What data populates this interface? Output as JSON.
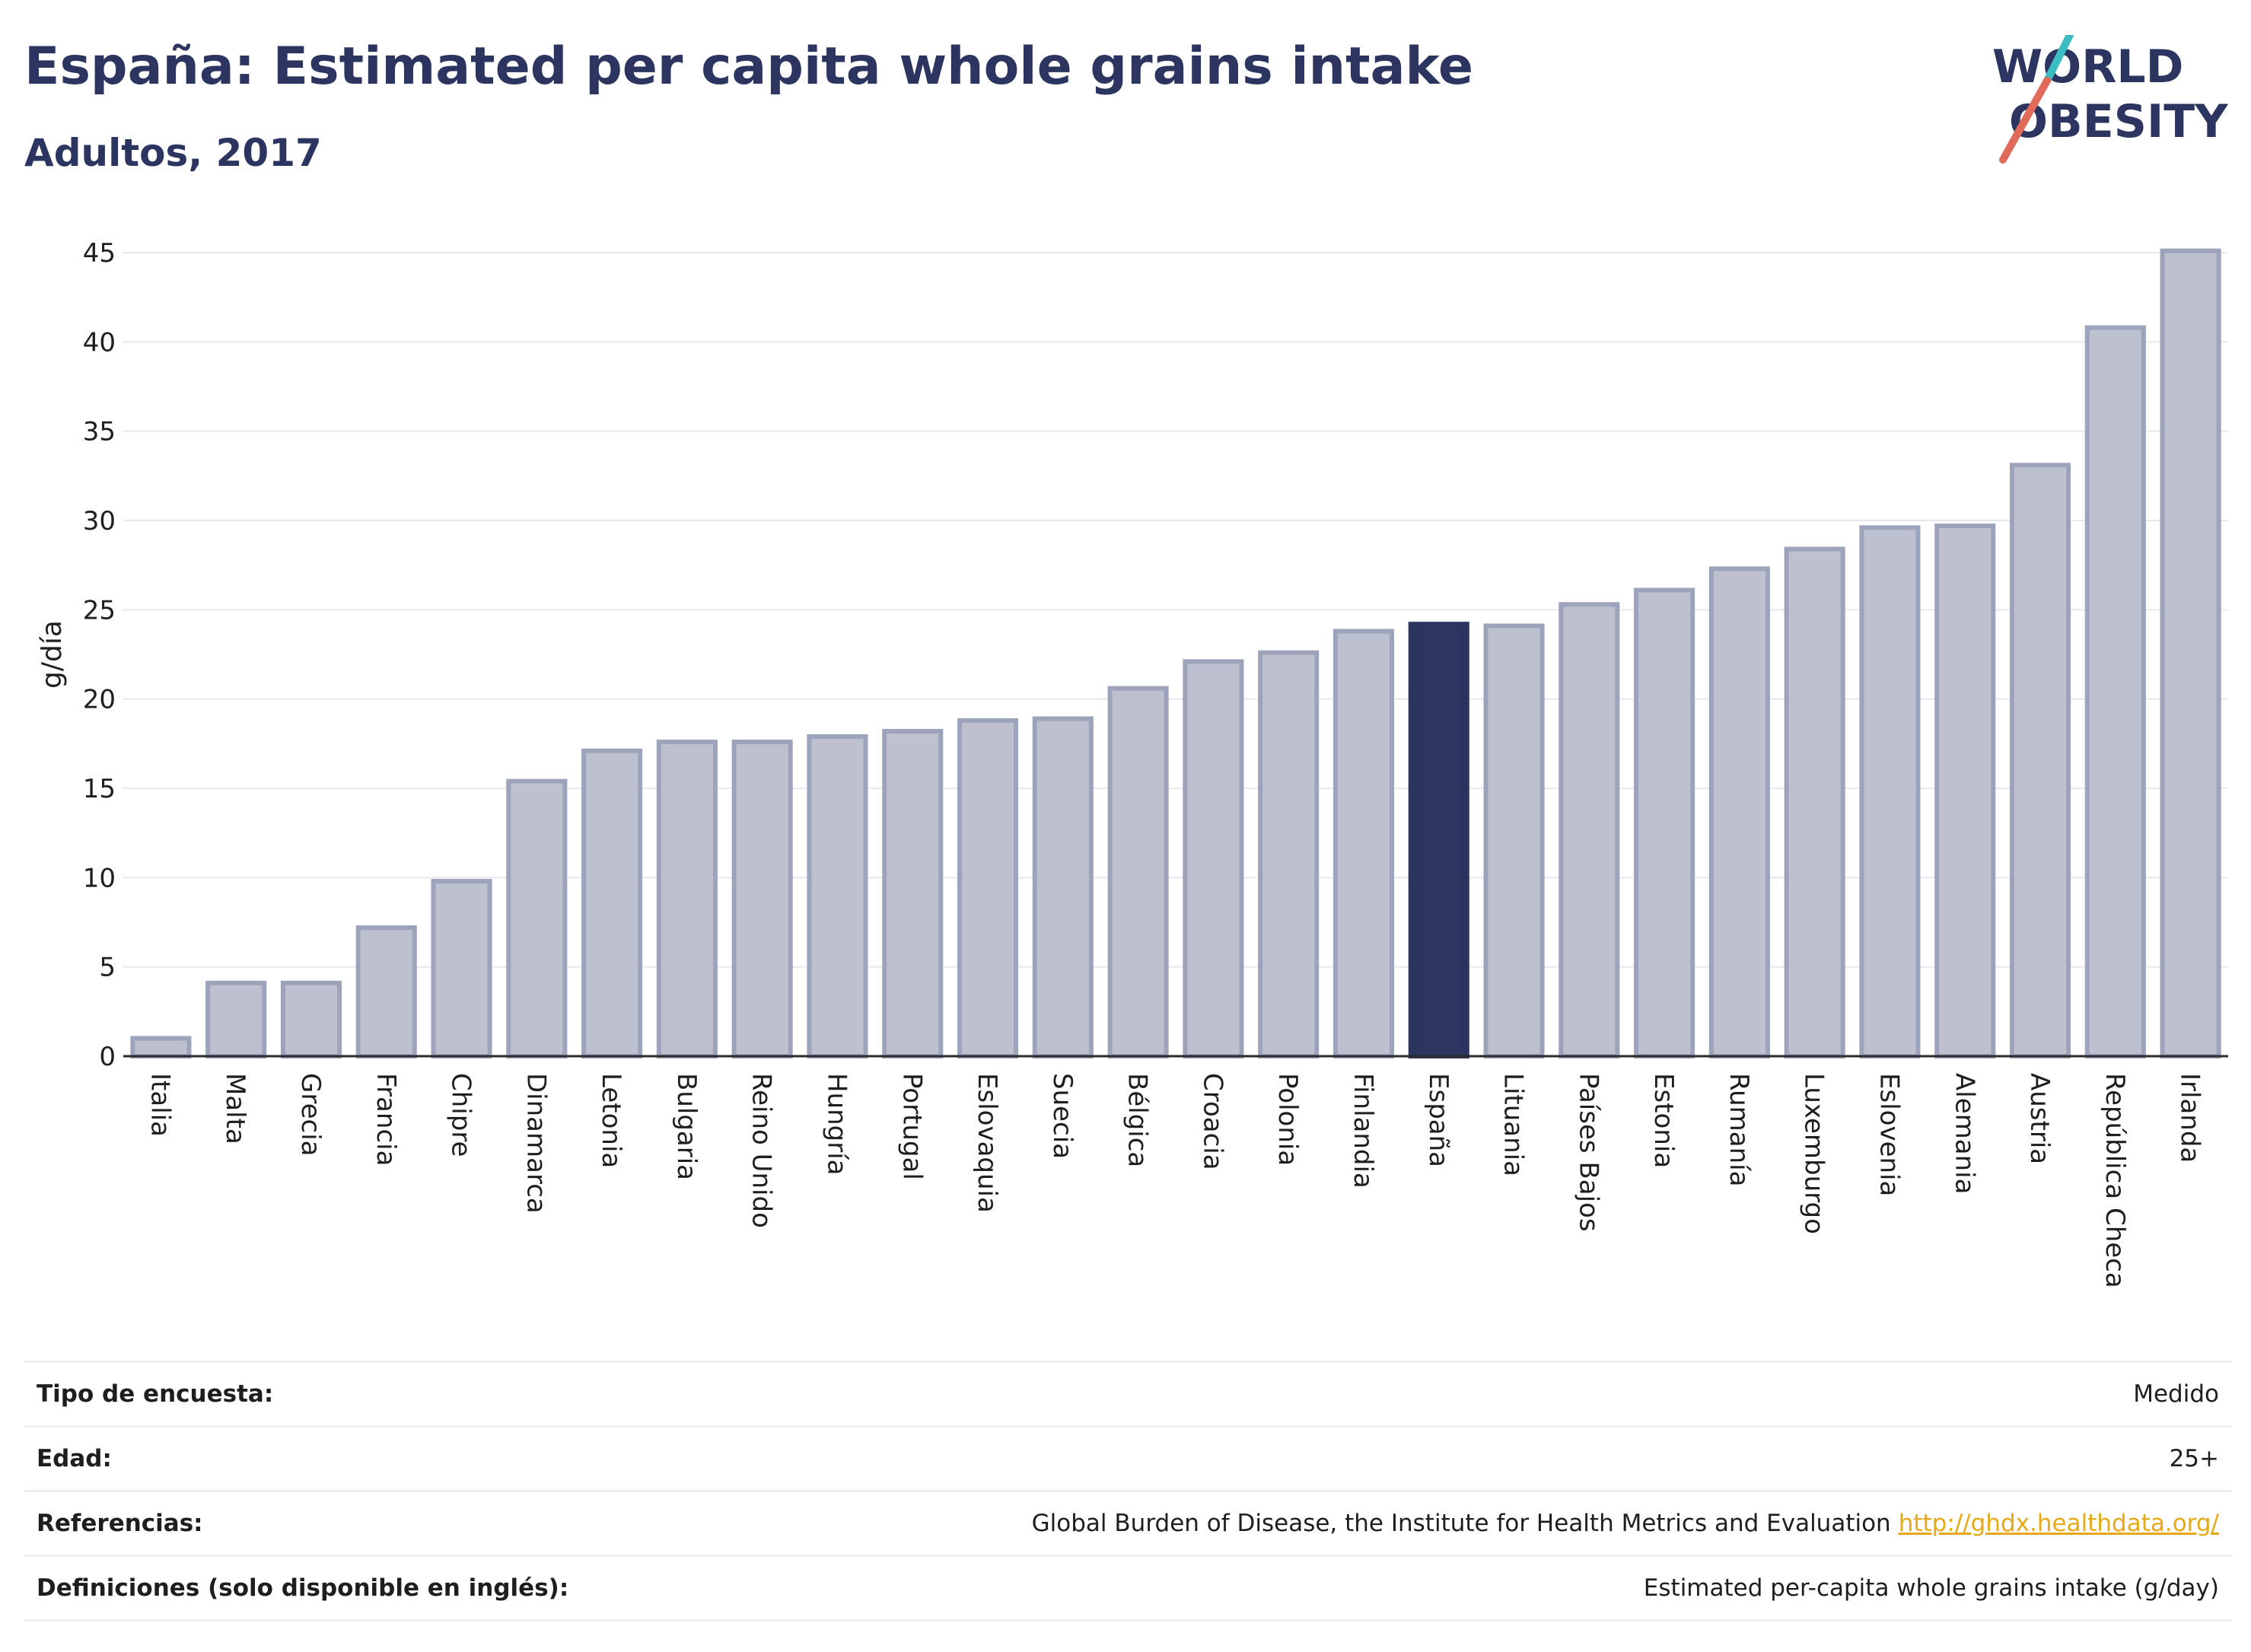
{
  "header": {
    "title": "España: Estimated per capita whole grains intake",
    "subtitle": "Adultos, 2017"
  },
  "logo": {
    "line1": "WORLD",
    "line2": "OBESITY",
    "accent_colors": [
      "#3cbcc3",
      "#e06b5a"
    ]
  },
  "chart_data": {
    "type": "bar",
    "ylabel": "g/día",
    "ylim": [
      0,
      45
    ],
    "yticks": [
      0,
      5,
      10,
      15,
      20,
      25,
      30,
      35,
      40,
      45
    ],
    "grid": true,
    "highlight": "España",
    "colors": {
      "bar": "#bcc0cf",
      "bar_border": "#9ea3bc",
      "highlight": "#2b3560"
    },
    "categories": [
      "Italia",
      "Malta",
      "Grecia",
      "Francia",
      "Chipre",
      "Dinamarca",
      "Letonia",
      "Bulgaria",
      "Reino Unido",
      "Hungría",
      "Portugal",
      "Eslovaquia",
      "Suecia",
      "Bélgica",
      "Croacia",
      "Polonia",
      "Finlandia",
      "España",
      "Lituania",
      "Países Bajos",
      "Estonia",
      "Rumanía",
      "Luxemburgo",
      "Eslovenia",
      "Alemania",
      "Austria",
      "República Checa",
      "Irlanda"
    ],
    "values": [
      1.0,
      4.1,
      4.1,
      7.2,
      9.8,
      15.4,
      17.1,
      17.6,
      17.6,
      17.9,
      18.2,
      18.8,
      18.9,
      20.6,
      22.1,
      22.6,
      23.8,
      24.2,
      24.1,
      25.3,
      26.1,
      27.3,
      28.4,
      29.6,
      29.7,
      33.1,
      40.8,
      45.1
    ]
  },
  "info": {
    "rows": [
      {
        "label": "Tipo de encuesta:",
        "value": "Medido"
      },
      {
        "label": "Edad:",
        "value": "25+"
      },
      {
        "label": "Referencias:",
        "value": "Global Burden of Disease, the Institute for Health Metrics and Evaluation",
        "link": "http://ghdx.healthdata.org/"
      },
      {
        "label": "Definiciones (solo disponible en inglés):",
        "value": "Estimated per-capita whole grains intake (g/day)"
      }
    ]
  }
}
